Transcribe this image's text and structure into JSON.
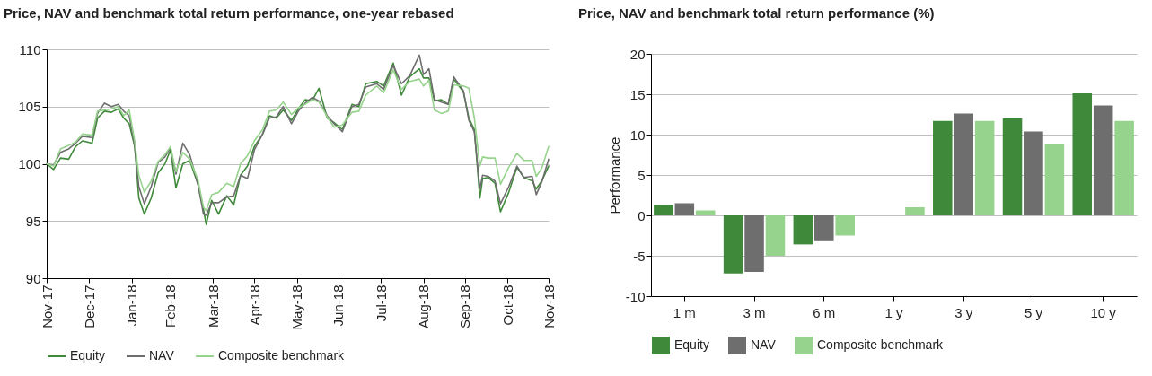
{
  "chart_data": [
    {
      "type": "line",
      "title": "Price, NAV and benchmark total return performance, one-year rebased",
      "x": [
        "2017-11-30",
        "2017-12-05",
        "2017-12-10",
        "2017-12-16",
        "2017-12-21",
        "2017-12-26",
        "2018-01-02",
        "2018-01-06",
        "2018-01-11",
        "2018-01-16",
        "2018-01-21",
        "2018-01-25",
        "2018-01-29",
        "2018-02-02",
        "2018-02-05",
        "2018-02-09",
        "2018-02-14",
        "2018-02-19",
        "2018-02-24",
        "2018-02-28",
        "2018-03-04",
        "2018-03-09",
        "2018-03-14",
        "2018-03-20",
        "2018-03-24",
        "2018-03-26",
        "2018-03-30",
        "2018-04-04",
        "2018-04-10",
        "2018-04-15",
        "2018-04-20",
        "2018-04-25",
        "2018-04-30",
        "2018-05-06",
        "2018-05-11",
        "2018-05-16",
        "2018-05-21",
        "2018-05-27",
        "2018-06-01",
        "2018-06-06",
        "2018-06-11",
        "2018-06-16",
        "2018-06-22",
        "2018-06-27",
        "2018-07-03",
        "2018-07-10",
        "2018-07-15",
        "2018-07-20",
        "2018-07-28",
        "2018-08-02",
        "2018-08-09",
        "2018-08-15",
        "2018-08-21",
        "2018-08-28",
        "2018-08-31",
        "2018-09-04",
        "2018-09-08",
        "2018-09-13",
        "2018-09-18",
        "2018-09-22",
        "2018-09-29",
        "2018-10-03",
        "2018-10-07",
        "2018-10-11",
        "2018-10-13",
        "2018-10-17",
        "2018-10-22",
        "2018-10-26",
        "2018-11-01",
        "2018-11-07",
        "2018-11-12",
        "2018-11-18",
        "2018-11-21",
        "2018-11-25",
        "2018-11-30"
      ],
      "series": [
        {
          "name": "Equity",
          "color": "#3f8a3a",
          "values": [
            100,
            99.5,
            100.5,
            100.4,
            101.5,
            102.0,
            101.8,
            104.0,
            104.6,
            104.5,
            104.8,
            104.0,
            103.5,
            101.5,
            97.0,
            95.6,
            97.0,
            99.2,
            100.0,
            101.2,
            97.9,
            100.0,
            100.3,
            98.2,
            96.0,
            94.7,
            96.8,
            95.6,
            97.2,
            96.4,
            99.0,
            99.8,
            101.5,
            102.6,
            104.2,
            104.0,
            104.7,
            103.8,
            104.8,
            105.6,
            105.5,
            106.6,
            104.0,
            103.6,
            103.0,
            105.2,
            105.0,
            107.0,
            107.2,
            106.8,
            108.8,
            106.0,
            107.6,
            108.3,
            107.5,
            107.5,
            105.5,
            105.6,
            105.2,
            107.4,
            106.3,
            104.0,
            103.0,
            97.0,
            98.7,
            98.8,
            98.3,
            95.8,
            97.5,
            99.7,
            98.8,
            98.5,
            97.8,
            98.5,
            99.8
          ]
        },
        {
          "name": "NAV",
          "color": "#6e6e6e",
          "values": [
            100,
            99.9,
            101,
            101.3,
            101.8,
            102.4,
            102.3,
            104.4,
            105.3,
            105.0,
            105.2,
            104.6,
            104.2,
            101.6,
            98.0,
            96.5,
            98.0,
            100.1,
            100.6,
            101.4,
            99.1,
            101.8,
            100.8,
            98.2,
            95.6,
            95.5,
            96.6,
            96.6,
            97.1,
            97.2,
            99.0,
            98.7,
            101.2,
            102.6,
            104.0,
            104.1,
            105.0,
            103.5,
            104.6,
            105.3,
            105.8,
            105.5,
            104.2,
            103.5,
            102.8,
            105.0,
            105.2,
            106.7,
            107.0,
            106.5,
            108.6,
            107.0,
            107.7,
            109.5,
            107.8,
            108.3,
            105.6,
            105.4,
            105.2,
            107.6,
            106.4,
            103.8,
            102.8,
            97.8,
            99.0,
            98.9,
            98.5,
            96.5,
            98.0,
            99.8,
            98.8,
            98.9,
            97.3,
            98.4,
            100.4
          ]
        },
        {
          "name": "Composite benchmark",
          "color": "#96d38c",
          "values": [
            100,
            99.8,
            101.3,
            101.6,
            101.9,
            102.6,
            102.5,
            104.6,
            104.7,
            104.8,
            105.0,
            104.2,
            104.7,
            102.0,
            99.0,
            97.5,
            98.5,
            100.2,
            100.8,
            101.5,
            99.3,
            101.0,
            100.4,
            98.6,
            96.2,
            95.9,
            97.3,
            97.5,
            98.3,
            98.0,
            100.0,
            100.7,
            102.0,
            103.0,
            104.6,
            104.7,
            105.4,
            104.3,
            104.9,
            105.2,
            105.6,
            105.4,
            104.1,
            103.2,
            103.4,
            104.5,
            104.6,
            106.0,
            106.8,
            106.2,
            108.2,
            106.5,
            107.2,
            107.4,
            106.8,
            107.3,
            104.7,
            104.4,
            104.6,
            106.9,
            106.8,
            106.6,
            104.0,
            99.8,
            100.6,
            100.5,
            100.5,
            98.2,
            99.7,
            100.9,
            100.3,
            100.3,
            98.9,
            99.6,
            101.5
          ]
        }
      ],
      "xlim": [
        "2017-11-30",
        "2018-11-30"
      ],
      "xticks": [
        {
          "value": "2017-11-30",
          "label": "Nov-17"
        },
        {
          "value": "2017-12-31",
          "label": "Dec-17"
        },
        {
          "value": "2018-01-31",
          "label": "Jan-18"
        },
        {
          "value": "2018-02-28",
          "label": "Feb-18"
        },
        {
          "value": "2018-03-31",
          "label": "Mar-18"
        },
        {
          "value": "2018-04-30",
          "label": "Apr-18"
        },
        {
          "value": "2018-05-31",
          "label": "May-18"
        },
        {
          "value": "2018-06-30",
          "label": "Jun-18"
        },
        {
          "value": "2018-07-31",
          "label": "Jul-18"
        },
        {
          "value": "2018-08-31",
          "label": "Aug-18"
        },
        {
          "value": "2018-09-30",
          "label": "Sep-18"
        },
        {
          "value": "2018-10-31",
          "label": "Oct-18"
        },
        {
          "value": "2018-11-30",
          "label": "Nov-18"
        }
      ],
      "ylim": [
        90,
        110
      ],
      "yticks": [
        90,
        95,
        100,
        105,
        110
      ],
      "grid": "y",
      "legend": "bottom"
    },
    {
      "type": "bar",
      "title": "Price, NAV and benchmark total return performance (%)",
      "ylabel": "Performance",
      "categories": [
        "1 m",
        "3 m",
        "6 m",
        "1 y",
        "3 y",
        "5 y",
        "10 y"
      ],
      "series": [
        {
          "name": "Equity",
          "color": "#3f8a3a",
          "values": [
            1.3,
            -7.2,
            -3.6,
            0,
            11.7,
            12.0,
            15.1
          ]
        },
        {
          "name": "NAV",
          "color": "#6e6e6e",
          "values": [
            1.5,
            -7.0,
            -3.2,
            0,
            12.6,
            10.4,
            13.6
          ]
        },
        {
          "name": "Composite benchmark",
          "color": "#96d38c",
          "values": [
            0.6,
            -5.0,
            -2.5,
            1.0,
            11.7,
            8.9,
            11.7
          ]
        }
      ],
      "ylim": [
        -10,
        20
      ],
      "yticks": [
        -10,
        -5,
        0,
        5,
        10,
        15,
        20
      ],
      "grid": "y",
      "legend": "bottom"
    }
  ]
}
